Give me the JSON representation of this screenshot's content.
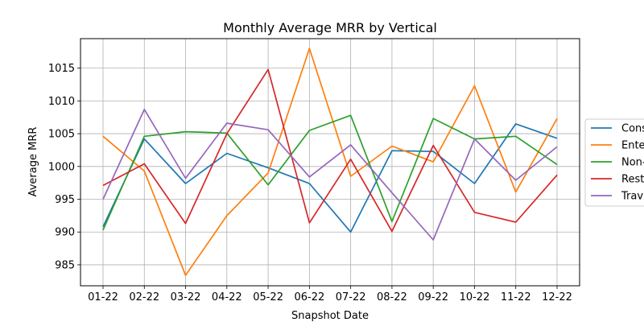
{
  "chart_data": {
    "type": "line",
    "title": "Monthly Average MRR by Vertical",
    "xlabel": "Snapshot Date",
    "ylabel": "Average MRR",
    "categories": [
      "01-22",
      "02-22",
      "03-22",
      "04-22",
      "05-22",
      "06-22",
      "07-22",
      "08-22",
      "09-22",
      "10-22",
      "11-22",
      "12-22"
    ],
    "ylim": [
      981.8,
      1019.5
    ],
    "yticks": [
      985,
      990,
      995,
      1000,
      1005,
      1010,
      1015
    ],
    "grid": true,
    "legend_position": "right",
    "series": [
      {
        "name": "Cons",
        "color": "#1f77b4",
        "values": [
          990.8,
          1004.2,
          997.4,
          1002.0,
          999.8,
          997.4,
          990.0,
          1002.4,
          1002.3,
          997.4,
          1006.5,
          1004.3
        ]
      },
      {
        "name": "Ente",
        "color": "#ff7f0e",
        "values": [
          1004.6,
          999.3,
          983.4,
          992.5,
          999.0,
          1018.0,
          998.5,
          1003.1,
          1000.7,
          1012.3,
          996.1,
          1007.3
        ]
      },
      {
        "name": "Non-",
        "color": "#2ca02c",
        "values": [
          990.3,
          1004.6,
          1005.3,
          1005.1,
          997.2,
          1005.5,
          1007.8,
          991.6,
          1007.3,
          1004.2,
          1004.6,
          1000.3
        ]
      },
      {
        "name": "Rest",
        "color": "#d62728",
        "values": [
          997.1,
          1000.4,
          991.3,
          1005.0,
          1014.8,
          991.4,
          1001.1,
          990.1,
          1003.2,
          993.0,
          991.5,
          998.7
        ]
      },
      {
        "name": "Trav",
        "color": "#9467bd",
        "values": [
          995.0,
          1008.7,
          998.2,
          1006.6,
          1005.6,
          998.4,
          1003.3,
          996.0,
          988.8,
          1004.2,
          997.9,
          1003.0
        ]
      }
    ]
  }
}
